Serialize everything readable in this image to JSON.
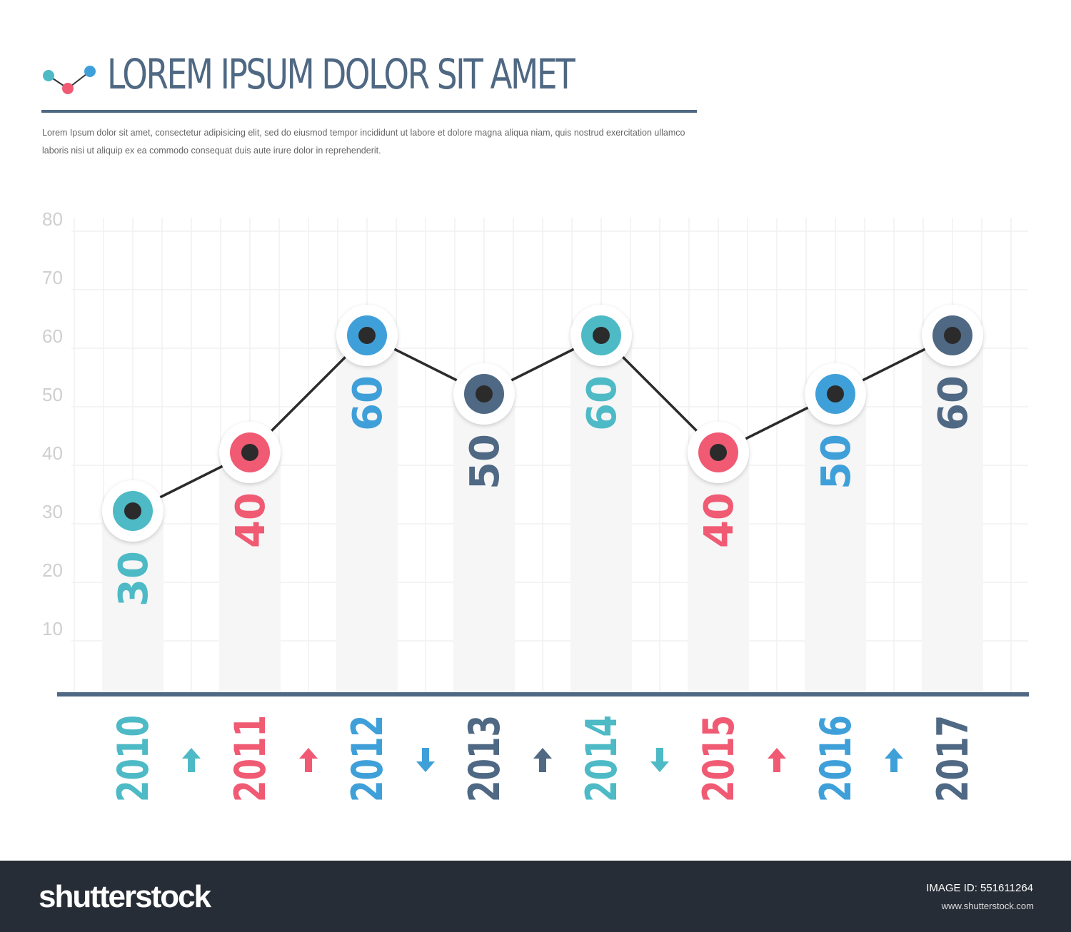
{
  "header": {
    "title": "LOREM IPSUM DOLOR SIT AMET",
    "description": "Lorem Ipsum dolor sit amet, consectetur adipisicing elit, sed do eiusmod tempor incididunt ut labore et dolore magna aliqua niam, quis nostrud exercitation ullamco laboris nisi ut aliquip ex ea commodo consequat duis aute irure dolor in reprehenderit."
  },
  "colors": {
    "teal": "#4dbac6",
    "pink": "#f05a73",
    "blue": "#3fa0d9",
    "dark": "#4f6883"
  },
  "chart_data": {
    "type": "line",
    "title": "LOREM IPSUM DOLOR SIT AMET",
    "xlabel": "",
    "ylabel": "",
    "ylim": [
      0,
      80
    ],
    "yticks": [
      "10",
      "20",
      "30",
      "40",
      "50",
      "60",
      "70",
      "80"
    ],
    "grid": true,
    "categories": [
      "2010",
      "2011",
      "2012",
      "2013",
      "2014",
      "2015",
      "2016",
      "2017"
    ],
    "values": [
      30,
      40,
      60,
      50,
      60,
      40,
      50,
      60
    ],
    "value_labels": [
      "30",
      "40",
      "60",
      "50",
      "60",
      "40",
      "50",
      "60"
    ],
    "point_colors": [
      "teal",
      "pink",
      "blue",
      "dark",
      "teal",
      "pink",
      "blue",
      "dark"
    ],
    "trend_arrows": [
      {
        "direction": "up",
        "color": "teal"
      },
      {
        "direction": "up",
        "color": "pink"
      },
      {
        "direction": "down",
        "color": "blue"
      },
      {
        "direction": "up",
        "color": "dark"
      },
      {
        "direction": "down",
        "color": "teal"
      },
      {
        "direction": "up",
        "color": "pink"
      },
      {
        "direction": "up",
        "color": "blue"
      }
    ]
  },
  "footer": {
    "brand": "shutterstock",
    "image_id": "IMAGE ID: 551611264",
    "site": "www.shutterstock.com"
  }
}
